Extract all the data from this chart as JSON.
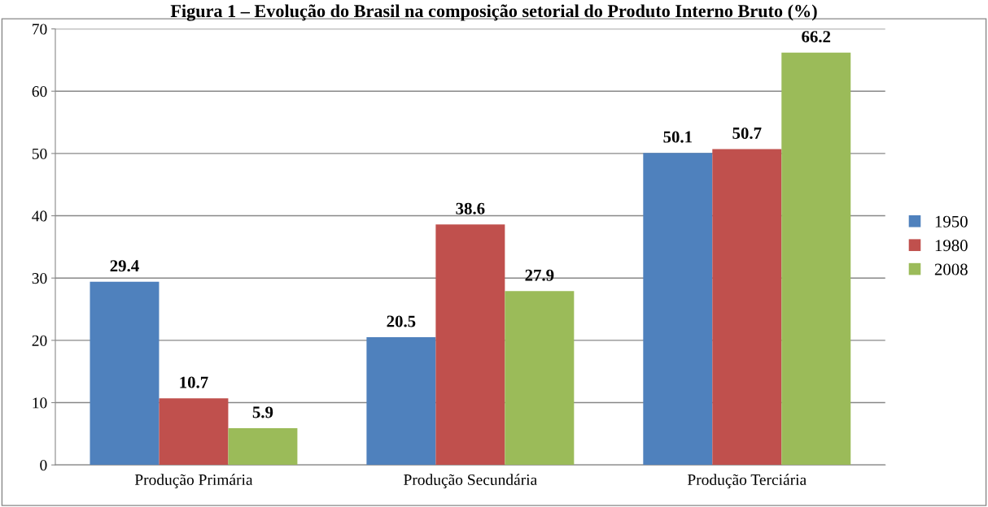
{
  "chart_data": {
    "type": "bar",
    "title": "Figura 1 – Evolução do Brasil na composição setorial do Produto Interno Bruto (%)",
    "categories": [
      "Produção Primária",
      "Produção Secundária",
      "Produção Terciária"
    ],
    "series": [
      {
        "name": "1950",
        "color": "#4f81bd",
        "values": [
          29.4,
          20.5,
          50.1
        ]
      },
      {
        "name": "1980",
        "color": "#c0504d",
        "values": [
          10.7,
          38.6,
          50.7
        ]
      },
      {
        "name": "2008",
        "color": "#9bbb59",
        "values": [
          5.9,
          27.9,
          66.2
        ]
      }
    ],
    "ylim": [
      0,
      70
    ],
    "yticks": [
      0,
      10,
      20,
      30,
      40,
      50,
      60,
      70
    ],
    "grid": "y",
    "legend": "right",
    "data_labels": true
  }
}
